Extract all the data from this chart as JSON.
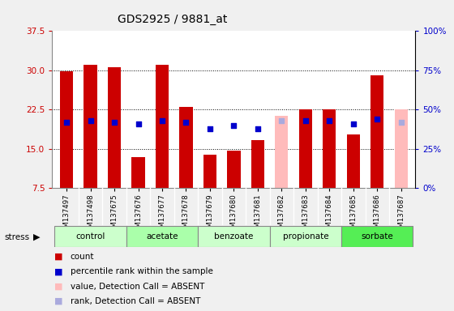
{
  "title": "GDS2925 / 9881_at",
  "samples": [
    "GSM137497",
    "GSM137498",
    "GSM137675",
    "GSM137676",
    "GSM137677",
    "GSM137678",
    "GSM137679",
    "GSM137680",
    "GSM137681",
    "GSM137682",
    "GSM137683",
    "GSM137684",
    "GSM137685",
    "GSM137686",
    "GSM137687"
  ],
  "group_names": [
    "control",
    "acetate",
    "benzoate",
    "propionate",
    "sorbate"
  ],
  "group_boundaries": [
    0,
    3,
    6,
    9,
    12,
    15
  ],
  "group_colors": [
    "#ccffcc",
    "#aaffaa",
    "#ccffcc",
    "#ccffcc",
    "#55ee55"
  ],
  "count_values": [
    29.8,
    31.1,
    30.6,
    13.5,
    31.1,
    23.0,
    13.9,
    14.6,
    16.6,
    0,
    22.6,
    22.6,
    17.8,
    29.0,
    0
  ],
  "absent_value_values": [
    0,
    0,
    0,
    0,
    0,
    0,
    0,
    0,
    0,
    46,
    0,
    0,
    0,
    0,
    50
  ],
  "percentile_rank": [
    42,
    43,
    42,
    41,
    43,
    42,
    38,
    40,
    38,
    0,
    43,
    43,
    41,
    44,
    0
  ],
  "absent_rank_values": [
    0,
    0,
    0,
    0,
    0,
    0,
    0,
    0,
    0,
    43,
    0,
    0,
    0,
    0,
    42
  ],
  "absent_samples": [
    9,
    14
  ],
  "ylim_left": [
    7.5,
    37.5
  ],
  "ylim_right": [
    0,
    100
  ],
  "yticks_left": [
    7.5,
    15.0,
    22.5,
    30.0,
    37.5
  ],
  "yticks_right": [
    0,
    25,
    50,
    75,
    100
  ],
  "bar_color_count": "#cc0000",
  "bar_color_absent_value": "#ffbbbb",
  "dot_color_rank": "#0000cc",
  "dot_color_absent_rank": "#aaaadd",
  "tick_bg_color": "#d0d0d0",
  "fig_bg_color": "#f0f0f0",
  "plot_bg": "#ffffff",
  "stress_label": "stress"
}
